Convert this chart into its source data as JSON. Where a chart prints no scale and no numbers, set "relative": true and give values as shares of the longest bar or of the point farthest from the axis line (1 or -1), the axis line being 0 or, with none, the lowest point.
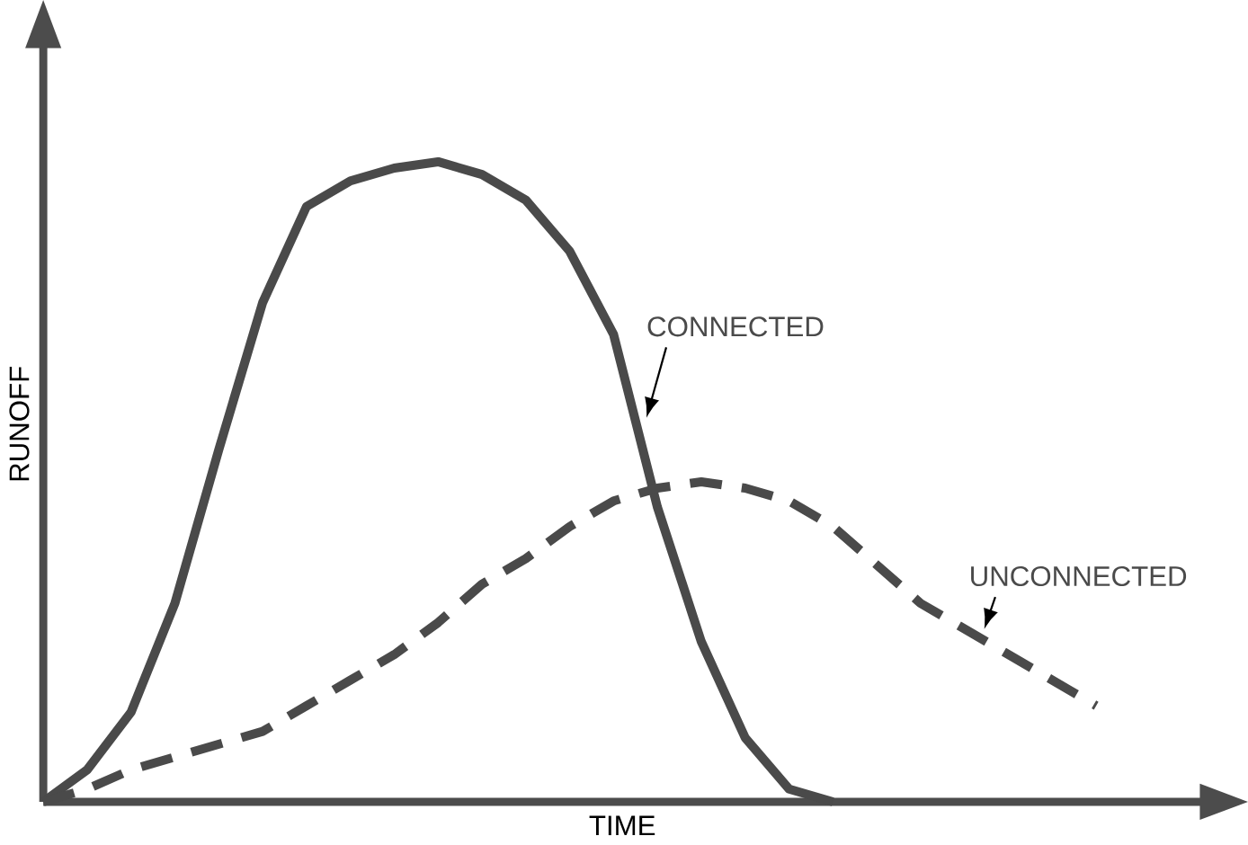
{
  "chart_data": {
    "type": "line",
    "relative": true,
    "xlabel": "TIME",
    "ylabel": "RUNOFF",
    "categories": [
      null,
      null,
      null,
      null,
      null,
      null,
      null,
      null,
      null,
      null,
      null,
      null,
      null,
      null,
      null,
      null,
      null,
      null,
      null,
      null,
      null,
      null,
      null,
      null,
      null
    ],
    "series": [
      {
        "name": "CONNECTED",
        "color": "#4a4a4a",
        "line_style": "solid",
        "values": [
          0,
          0.05,
          0.14,
          0.31,
          0.55,
          0.78,
          0.93,
          0.97,
          0.99,
          1.0,
          0.98,
          0.94,
          0.86,
          0.73,
          0.46,
          0.25,
          0.1,
          0.02,
          0,
          null,
          null,
          null,
          null,
          null,
          null
        ]
      },
      {
        "name": "UNCONNECTED",
        "color": "#4a4a4a",
        "line_style": "dashed",
        "values": [
          0,
          0.02,
          0.05,
          0.07,
          0.09,
          0.11,
          0.15,
          0.19,
          0.23,
          0.28,
          0.34,
          0.38,
          0.43,
          0.47,
          0.49,
          0.5,
          0.49,
          0.47,
          0.43,
          0.37,
          0.31,
          0.27,
          0.23,
          0.19,
          0.15
        ]
      }
    ]
  }
}
